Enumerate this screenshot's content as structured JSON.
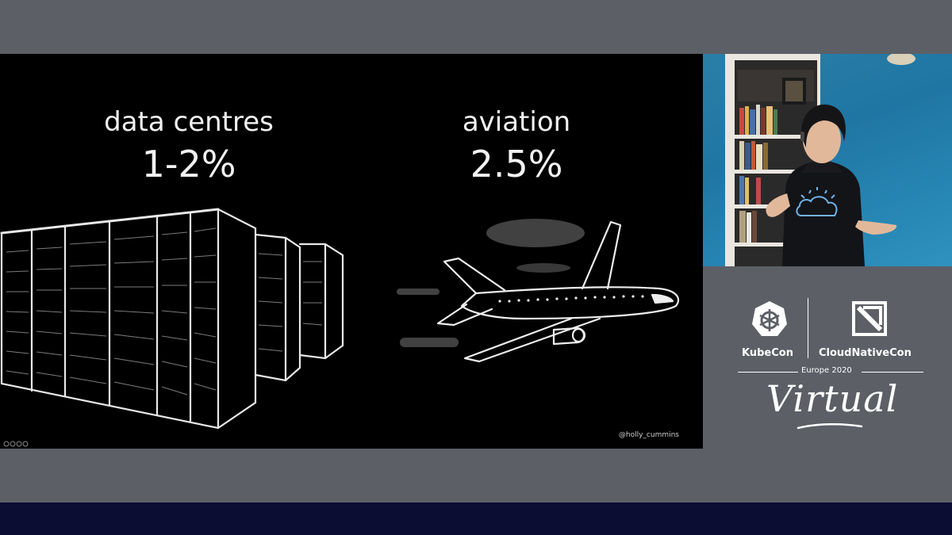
{
  "slide": {
    "stats": [
      {
        "label": "data centres",
        "value": "1-2%"
      },
      {
        "label": "aviation",
        "value": "2.5%"
      }
    ],
    "credit": "@holly_cummins"
  },
  "event": {
    "kubecon": "KubeCon",
    "cloudnativecon": "CloudNativeCon",
    "edition": "Europe 2020",
    "virtual": "Virtual"
  },
  "colors": {
    "frame": "#5c5f66",
    "bottom_bar": "#0c0d33",
    "slide_bg": "#000000",
    "video_wall": "#2a7fa6"
  },
  "icons": [
    "kubernetes-helm-icon",
    "cncf-icon",
    "server-rack-sketch",
    "airplane-sketch",
    "speaker-video"
  ]
}
